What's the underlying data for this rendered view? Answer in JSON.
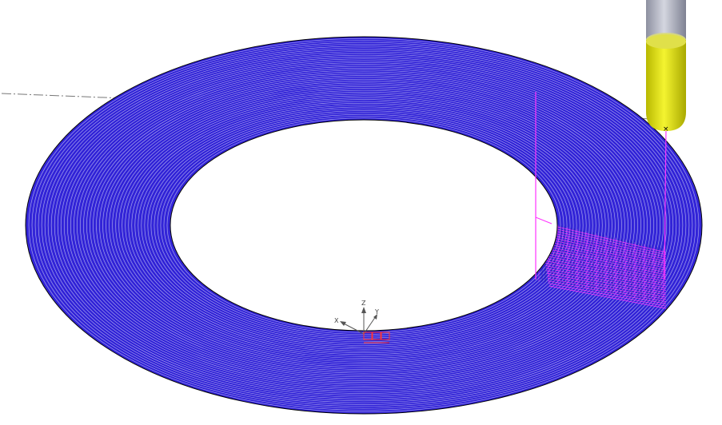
{
  "viewport": {
    "background": "#ffffff"
  },
  "toolpath": {
    "pattern": "concentric-rings",
    "ring_color": "#2a1ad6",
    "ring_background": "#3b2fd9",
    "link_color": "#ff33ff",
    "outline_color": "#000000"
  },
  "tool": {
    "icon": "ball-nose-cutter-icon",
    "holder_color": "#b3b6c4",
    "cutter_color": "#e8e825",
    "marker": "×"
  },
  "workplane_line": {
    "style": "dash-dot",
    "color": "#777777"
  },
  "axis_triad": {
    "icon": "axis-triad-icon",
    "x": "X",
    "y": "Y",
    "z": "Z",
    "origin_color": "#ff3333"
  }
}
